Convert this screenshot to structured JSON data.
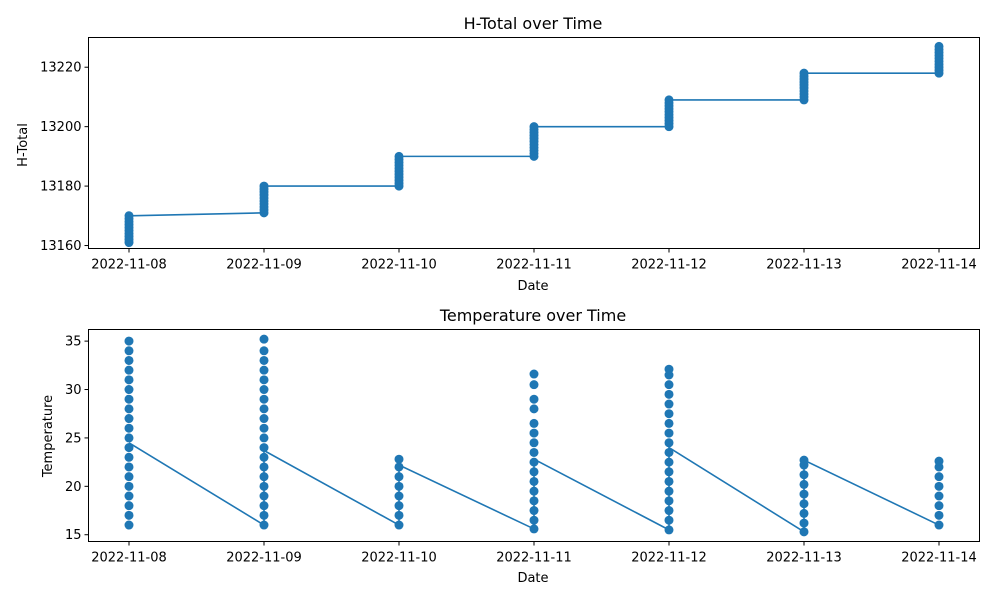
{
  "chart_data": [
    {
      "type": "line",
      "title": "H-Total over Time",
      "xlabel": "Date",
      "ylabel": "H-Total",
      "x_ticks": [
        "2022-11-08",
        "2022-11-09",
        "2022-11-10",
        "2022-11-11",
        "2022-11-12",
        "2022-11-13",
        "2022-11-14"
      ],
      "y_ticks": [
        13160,
        13180,
        13200,
        13220
      ],
      "xlim": [
        "2022-11-07T16:48",
        "2022-11-14T07:12"
      ],
      "ylim": [
        13159,
        13230
      ],
      "color": "#1f77b4",
      "grid": false,
      "line_points": [
        {
          "x": "2022-11-08",
          "y": 13170
        },
        {
          "x": "2022-11-09",
          "y": 13171
        },
        {
          "x": "2022-11-09",
          "y": 13180
        },
        {
          "x": "2022-11-10",
          "y": 13180
        },
        {
          "x": "2022-11-10",
          "y": 13190
        },
        {
          "x": "2022-11-11",
          "y": 13190
        },
        {
          "x": "2022-11-11",
          "y": 13200
        },
        {
          "x": "2022-11-12",
          "y": 13200
        },
        {
          "x": "2022-11-12",
          "y": 13209
        },
        {
          "x": "2022-11-13",
          "y": 13209
        },
        {
          "x": "2022-11-13",
          "y": 13218
        },
        {
          "x": "2022-11-14",
          "y": 13218
        }
      ],
      "scatter_points": [
        {
          "x": "2022-11-08",
          "y": [
            13161,
            13162,
            13163,
            13164,
            13165,
            13166,
            13167,
            13168,
            13169,
            13170
          ]
        },
        {
          "x": "2022-11-09",
          "y": [
            13171,
            13172,
            13173,
            13174,
            13175,
            13176,
            13177,
            13178,
            13179,
            13180
          ]
        },
        {
          "x": "2022-11-10",
          "y": [
            13180,
            13181,
            13182,
            13183,
            13184,
            13185,
            13186,
            13187,
            13188,
            13189,
            13190
          ]
        },
        {
          "x": "2022-11-11",
          "y": [
            13190,
            13191,
            13192,
            13193,
            13194,
            13195,
            13196,
            13197,
            13198,
            13199,
            13200
          ]
        },
        {
          "x": "2022-11-12",
          "y": [
            13200,
            13201,
            13202,
            13203,
            13204,
            13205,
            13206,
            13207,
            13208,
            13209
          ]
        },
        {
          "x": "2022-11-13",
          "y": [
            13209,
            13210,
            13211,
            13212,
            13213,
            13214,
            13215,
            13216,
            13217,
            13218
          ]
        },
        {
          "x": "2022-11-14",
          "y": [
            13218,
            13219,
            13220,
            13221,
            13222,
            13223,
            13224,
            13225,
            13226,
            13227
          ]
        }
      ]
    },
    {
      "type": "line",
      "title": "Temperature over Time",
      "xlabel": "Date",
      "ylabel": "Temperature",
      "x_ticks": [
        "2022-11-08",
        "2022-11-09",
        "2022-11-10",
        "2022-11-11",
        "2022-11-12",
        "2022-11-13",
        "2022-11-14"
      ],
      "y_ticks": [
        15,
        20,
        25,
        30,
        35
      ],
      "xlim": [
        "2022-11-07T16:48",
        "2022-11-14T07:12"
      ],
      "ylim": [
        14.3,
        36.2
      ],
      "color": "#1f77b4",
      "grid": false,
      "line_points": [
        {
          "x": "2022-11-08",
          "y": 24.5
        },
        {
          "x": "2022-11-09",
          "y": 16.0
        },
        {
          "x": "2022-11-09",
          "y": 23.7
        },
        {
          "x": "2022-11-10",
          "y": 16.0
        },
        {
          "x": "2022-11-10",
          "y": 22.2
        },
        {
          "x": "2022-11-11",
          "y": 15.6
        },
        {
          "x": "2022-11-11",
          "y": 22.8
        },
        {
          "x": "2022-11-12",
          "y": 15.5
        },
        {
          "x": "2022-11-12",
          "y": 24.0
        },
        {
          "x": "2022-11-13",
          "y": 15.3
        },
        {
          "x": "2022-11-13",
          "y": 22.7
        },
        {
          "x": "2022-11-14",
          "y": 16.0
        }
      ],
      "scatter_points": [
        {
          "x": "2022-11-08",
          "y": [
            16.0,
            17.0,
            18.0,
            19.0,
            20.0,
            21.0,
            22.0,
            23.0,
            24.0,
            25.0,
            26.0,
            27.0,
            28.0,
            29.0,
            30.0,
            31.0,
            32.0,
            33.0,
            34.0,
            35.0
          ]
        },
        {
          "x": "2022-11-09",
          "y": [
            16.0,
            17.0,
            18.0,
            19.0,
            20.0,
            21.0,
            22.0,
            23.0,
            24.0,
            25.0,
            26.0,
            27.0,
            28.0,
            29.0,
            30.0,
            31.0,
            32.0,
            33.0,
            34.0,
            35.2
          ]
        },
        {
          "x": "2022-11-10",
          "y": [
            16.0,
            17.0,
            18.0,
            19.0,
            20.0,
            21.0,
            22.0,
            22.8
          ]
        },
        {
          "x": "2022-11-11",
          "y": [
            15.6,
            16.5,
            17.5,
            18.5,
            19.5,
            20.5,
            21.5,
            22.5,
            23.5,
            24.5,
            25.5,
            26.5,
            28.0,
            29.0,
            30.5,
            31.6
          ]
        },
        {
          "x": "2022-11-12",
          "y": [
            15.5,
            16.5,
            17.5,
            18.5,
            19.5,
            20.5,
            21.5,
            22.5,
            23.5,
            24.5,
            25.5,
            26.5,
            27.5,
            28.5,
            29.5,
            30.5,
            31.5,
            32.1
          ]
        },
        {
          "x": "2022-11-13",
          "y": [
            15.3,
            16.2,
            17.2,
            18.2,
            19.2,
            20.2,
            21.2,
            22.2,
            22.7
          ]
        },
        {
          "x": "2022-11-14",
          "y": [
            16.0,
            17.0,
            18.0,
            19.0,
            20.0,
            21.0,
            22.0,
            22.6
          ]
        }
      ]
    }
  ]
}
